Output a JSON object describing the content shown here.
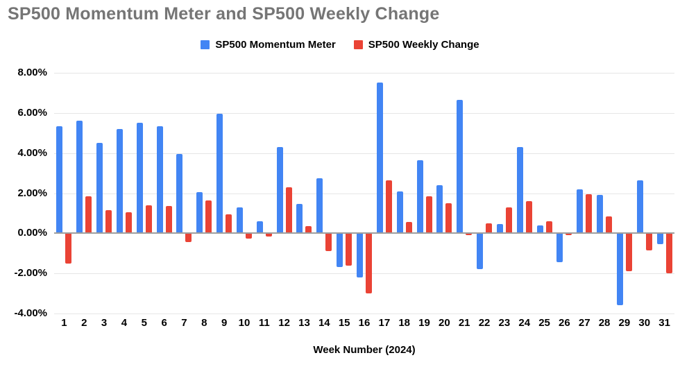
{
  "title": "SP500 Momentum Meter and SP500 Weekly Change",
  "legend": {
    "items": [
      {
        "label": "SP500 Momentum Meter",
        "color": "#4285F4"
      },
      {
        "label": "SP500 Weekly Change",
        "color": "#EA4335"
      }
    ]
  },
  "x_axis_title": "Week Number (2024)",
  "chart_data": {
    "type": "bar",
    "title": "SP500 Momentum Meter and SP500 Weekly Change",
    "xlabel": "Week Number (2024)",
    "ylabel": "",
    "categories": [
      "1",
      "2",
      "3",
      "4",
      "5",
      "6",
      "7",
      "8",
      "9",
      "10",
      "11",
      "12",
      "13",
      "14",
      "15",
      "16",
      "17",
      "18",
      "19",
      "20",
      "21",
      "22",
      "23",
      "24",
      "25",
      "26",
      "27",
      "28",
      "29",
      "30",
      "31"
    ],
    "series": [
      {
        "name": "SP500 Momentum Meter",
        "color": "#4285F4",
        "values": [
          5.35,
          5.6,
          4.5,
          5.2,
          5.5,
          5.35,
          3.95,
          2.05,
          5.95,
          1.3,
          0.6,
          4.3,
          1.45,
          2.75,
          -1.7,
          -2.2,
          7.5,
          2.1,
          3.65,
          2.4,
          6.65,
          -1.8,
          0.45,
          4.3,
          0.4,
          -1.45,
          2.2,
          1.9,
          -3.6,
          2.65,
          -0.55
        ]
      },
      {
        "name": "SP500 Weekly Change",
        "color": "#EA4335",
        "values": [
          -1.5,
          1.85,
          1.15,
          1.05,
          1.4,
          1.35,
          -0.45,
          1.65,
          0.95,
          -0.25,
          -0.15,
          2.3,
          0.35,
          -0.9,
          -1.6,
          -3.0,
          2.65,
          0.55,
          1.85,
          1.5,
          -0.1,
          0.5,
          1.3,
          1.6,
          0.6,
          -0.1,
          1.95,
          0.85,
          -1.9,
          -0.85,
          -2.0
        ]
      }
    ],
    "ylim": [
      -4,
      8
    ],
    "ytick_step": 2,
    "yticks": [
      {
        "value": 8,
        "label": "8.00%"
      },
      {
        "value": 6,
        "label": "6.00%"
      },
      {
        "value": 4,
        "label": "4.00%"
      },
      {
        "value": 2,
        "label": "2.00%"
      },
      {
        "value": 0,
        "label": "0.00%"
      },
      {
        "value": -2,
        "label": "-2.00%"
      },
      {
        "value": -4,
        "label": "-4.00%"
      }
    ],
    "grid": true,
    "legend_position": "top",
    "colors": {
      "momentum_series": "#4285F4",
      "weekly_series": "#EA4335",
      "title_text": "#757575",
      "axis_text": "#000000",
      "gridline": "#e6e6e6",
      "zero_line": "#9e9e9e",
      "background": "#ffffff"
    }
  }
}
